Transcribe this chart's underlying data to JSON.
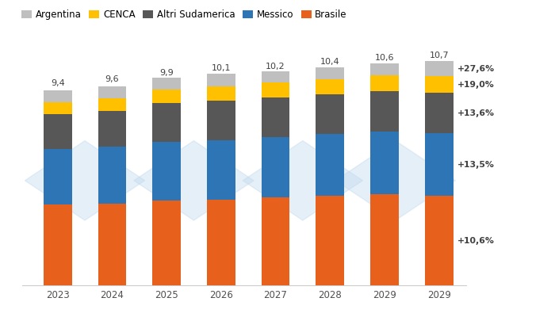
{
  "years": [
    "2023",
    "2024",
    "2025",
    "2026",
    "2027",
    "2028",
    "2029",
    "2029"
  ],
  "totals": [
    "9,4",
    "9,6",
    "9,9",
    "10,1",
    "10,2",
    "10,4",
    "10,6",
    "10,7"
  ],
  "brasile": [
    3.85,
    3.9,
    4.05,
    4.1,
    4.2,
    4.28,
    4.35,
    4.26
  ],
  "messico": [
    2.65,
    2.7,
    2.78,
    2.84,
    2.88,
    2.93,
    2.97,
    3.01
  ],
  "altri_sudamerica": [
    1.68,
    1.73,
    1.86,
    1.89,
    1.89,
    1.91,
    1.94,
    1.91
  ],
  "cenca": [
    0.55,
    0.58,
    0.65,
    0.68,
    0.7,
    0.73,
    0.77,
    0.79
  ],
  "argentina": [
    0.57,
    0.59,
    0.56,
    0.59,
    0.53,
    0.55,
    0.57,
    0.73
  ],
  "colors": {
    "brasile": "#E8611C",
    "messico": "#2E75B6",
    "altri_sudamerica": "#575757",
    "cenca": "#FFC000",
    "argentina": "#BFBFBF"
  },
  "labels": {
    "brasile": "Brasile",
    "messico": "Messico",
    "altri_sudamerica": "Altri Sudamerica",
    "cenca": "CENCA",
    "argentina": "Argentina"
  },
  "annot_texts": {
    "argentina": "+27,6%",
    "cenca": "+19,0%",
    "altri_sudamerica": "+13,6%",
    "messico": "+13,5%",
    "brasile": "+10,6%"
  },
  "background_color": "#FFFFFF",
  "watermark_color": "#BDD7EE",
  "bar_width": 0.52,
  "ylim": [
    0,
    11.8
  ],
  "figsize": [
    7.0,
    4.0
  ],
  "dpi": 100
}
